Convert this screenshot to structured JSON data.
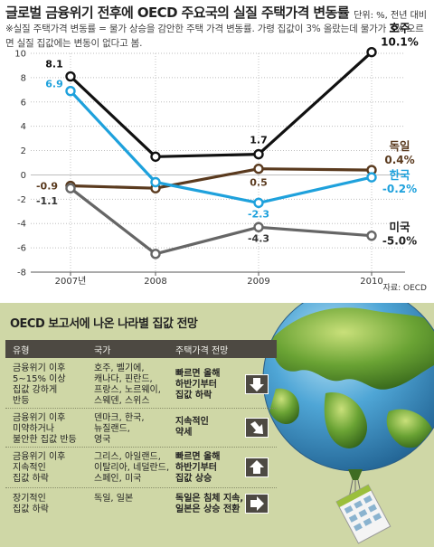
{
  "header": {
    "title": "글로벌 금융위기 전후에 OECD 주요국의 실질 주택가격 변동률",
    "unit": "단위: %, 전년 대비",
    "note": "※실질 주택가격 변동률 = 물가 상승을 감안한 주택 가격 변동률. 가령 집값이 3% 올랐는데 물가가 3% 오르면 실질 집값에는 변동이 없다고 봄.",
    "source": "자료: OECD"
  },
  "chart_data": {
    "type": "line",
    "title": "글로벌 금융위기 전후에 OECD 주요국의 실질 주택가격 변동률",
    "x": [
      "2007년",
      "2008",
      "2009",
      "2010"
    ],
    "ylim": [
      -8,
      10
    ],
    "yticks": [
      "10",
      "8",
      "6",
      "4",
      "2",
      "0",
      "-2",
      "-4",
      "-6",
      "-8"
    ],
    "grid": true,
    "series": [
      {
        "name": "호주",
        "values": [
          8.1,
          1.5,
          1.7,
          10.1
        ],
        "color": "#111111",
        "end_label": "10.1%",
        "point_labels": [
          "8.1",
          "",
          "1.7",
          ""
        ]
      },
      {
        "name": "독일",
        "values": [
          -0.9,
          -1.1,
          0.5,
          0.4
        ],
        "color": "#5a3a1e",
        "end_label": "0.4%",
        "point_labels": [
          "-0.9",
          "",
          "0.5",
          ""
        ]
      },
      {
        "name": "한국",
        "values": [
          6.9,
          -0.6,
          -2.3,
          -0.2
        ],
        "color": "#1ea1dc",
        "end_label": "-0.2%",
        "point_labels": [
          "6.9",
          "",
          "-2.3",
          ""
        ]
      },
      {
        "name": "미국",
        "values": [
          -1.1,
          -6.5,
          -4.3,
          -5.0
        ],
        "color": "#666666",
        "end_label": "-5.0%",
        "point_labels": [
          "-1.1",
          "",
          "-4.3",
          ""
        ]
      }
    ]
  },
  "outlook": {
    "title": "OECD 보고서에 나온 나라별 집값 전망",
    "headers": [
      "유형",
      "국가",
      "주택가격 전망"
    ],
    "rows": [
      {
        "type": "금융위기 이후\n5~15% 이상\n집값 강하게\n반등",
        "countries": "호주, 벨기에,\n캐나다, 핀란드,\n프랑스, 노르웨이,\n스웨덴, 스위스",
        "outlook": "빠르면 올해\n하반기부터\n집값 하락",
        "icon": "arrow-down-icon"
      },
      {
        "type": "금융위기 이후\n미약하거나\n불안한 집값 반등",
        "countries": "덴마크, 한국,\n뉴질랜드,\n영국",
        "outlook": "지속적인\n약세",
        "icon": "arrow-down-right-icon"
      },
      {
        "type": "금융위기 이후\n지속적인\n집값 하락",
        "countries": "그리스, 아일랜드,\n이탈리아, 네덜란드,\n스페인, 미국",
        "outlook": "빠르면 올해\n하반기부터\n집값 상승",
        "icon": "arrow-up-icon"
      },
      {
        "type": "장기적인\n집값 하락",
        "countries": "독일, 일본",
        "outlook": "독일은 침체 지속,\n일본은 상승 전환",
        "icon": "arrow-right-icon"
      }
    ]
  },
  "colors": {
    "panel_bg": "#cfd7a6",
    "header_bg": "#4d4942",
    "korea_blue": "#1ea1dc",
    "globe_green": "#4f8a2a",
    "globe_blue": "#4fa6d6"
  }
}
